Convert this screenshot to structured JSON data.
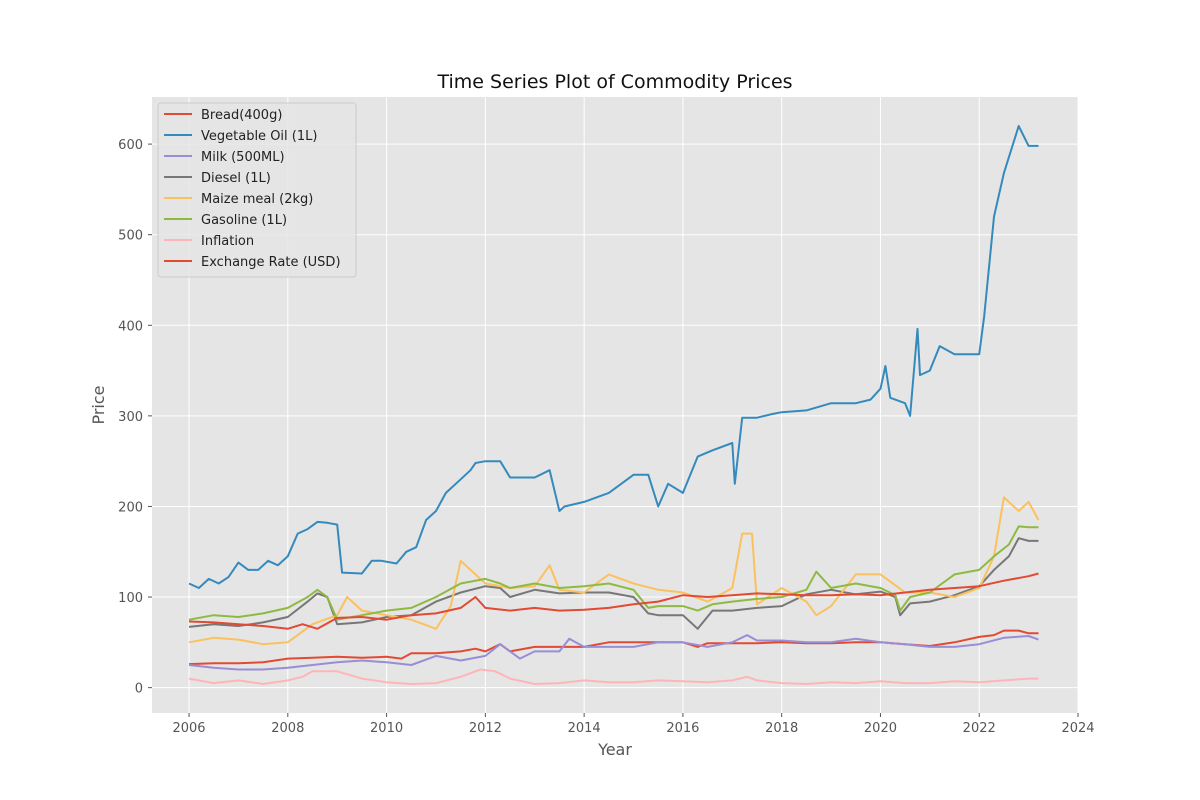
{
  "chart_data": {
    "type": "line",
    "title": "Time Series Plot of Commodity Prices",
    "xlabel": "Year",
    "ylabel": "Price",
    "xlim": [
      2005.25,
      2024.0
    ],
    "ylim": [
      -28,
      652
    ],
    "xticks": [
      2006,
      2008,
      2010,
      2012,
      2014,
      2016,
      2018,
      2020,
      2022,
      2024
    ],
    "yticks": [
      0,
      100,
      200,
      300,
      400,
      500,
      600
    ],
    "grid": true,
    "legend_position": "top-left",
    "series": [
      {
        "name": "Bread(400g)",
        "color": "#e24a33",
        "x": [
          2006.0,
          2006.5,
          2007.0,
          2007.5,
          2008.0,
          2008.5,
          2009.0,
          2009.5,
          2010.0,
          2010.3,
          2010.5,
          2011.0,
          2011.5,
          2011.8,
          2012.0,
          2012.3,
          2012.5,
          2013.0,
          2013.5,
          2014.0,
          2014.5,
          2015.0,
          2015.5,
          2016.0,
          2016.3,
          2016.5,
          2017.0,
          2017.5,
          2018.0,
          2018.5,
          2019.0,
          2019.5,
          2020.0,
          2020.5,
          2021.0,
          2021.5,
          2022.0,
          2022.3,
          2022.5,
          2022.8,
          2023.0,
          2023.2
        ],
        "y": [
          26,
          27,
          27,
          28,
          32,
          33,
          34,
          33,
          34,
          32,
          38,
          38,
          40,
          43,
          40,
          48,
          40,
          45,
          45,
          45,
          50,
          50,
          50,
          50,
          45,
          49,
          49,
          49,
          50,
          49,
          49,
          50,
          50,
          48,
          46,
          50,
          56,
          58,
          63,
          63,
          60,
          60
        ]
      },
      {
        "name": "Vegetable Oil (1L)",
        "color": "#348abd",
        "x": [
          2006.0,
          2006.2,
          2006.4,
          2006.6,
          2006.8,
          2007.0,
          2007.2,
          2007.4,
          2007.6,
          2007.8,
          2008.0,
          2008.2,
          2008.4,
          2008.6,
          2008.8,
          2009.0,
          2009.1,
          2009.5,
          2009.7,
          2009.9,
          2010.2,
          2010.4,
          2010.6,
          2010.8,
          2011.0,
          2011.2,
          2011.5,
          2011.7,
          2011.8,
          2012.0,
          2012.3,
          2012.5,
          2013.0,
          2013.3,
          2013.5,
          2013.6,
          2014.0,
          2014.5,
          2015.0,
          2015.3,
          2015.5,
          2015.7,
          2016.0,
          2016.3,
          2016.6,
          2017.0,
          2017.05,
          2017.2,
          2017.5,
          2017.8,
          2018.0,
          2018.5,
          2019.0,
          2019.5,
          2019.8,
          2020.0,
          2020.1,
          2020.2,
          2020.5,
          2020.6,
          2020.75,
          2020.8,
          2021.0,
          2021.2,
          2021.5,
          2022.0,
          2022.1,
          2022.3,
          2022.5,
          2022.8,
          2023.0,
          2023.2
        ],
        "y": [
          115,
          110,
          120,
          115,
          122,
          138,
          130,
          130,
          140,
          135,
          145,
          170,
          175,
          183,
          182,
          180,
          127,
          126,
          140,
          140,
          137,
          150,
          155,
          185,
          195,
          215,
          230,
          240,
          248,
          250,
          250,
          232,
          232,
          240,
          195,
          200,
          205,
          215,
          235,
          235,
          200,
          225,
          215,
          255,
          262,
          270,
          225,
          298,
          298,
          302,
          304,
          306,
          314,
          314,
          318,
          330,
          355,
          320,
          314,
          300,
          396,
          345,
          350,
          377,
          368,
          368,
          410,
          520,
          568,
          620,
          598,
          598
        ]
      },
      {
        "name": "Milk (500ML)",
        "color": "#988ed5",
        "x": [
          2006.0,
          2006.5,
          2007.0,
          2007.5,
          2008.0,
          2008.5,
          2009.0,
          2009.5,
          2010.0,
          2010.5,
          2011.0,
          2011.5,
          2012.0,
          2012.3,
          2012.7,
          2013.0,
          2013.5,
          2013.7,
          2014.0,
          2014.5,
          2015.0,
          2015.5,
          2016.0,
          2016.5,
          2017.0,
          2017.3,
          2017.5,
          2018.0,
          2018.5,
          2019.0,
          2019.5,
          2020.0,
          2020.5,
          2021.0,
          2021.5,
          2022.0,
          2022.5,
          2023.0,
          2023.2
        ],
        "y": [
          25,
          22,
          20,
          20,
          22,
          25,
          28,
          30,
          28,
          25,
          35,
          30,
          35,
          48,
          32,
          40,
          40,
          54,
          45,
          45,
          45,
          50,
          50,
          45,
          50,
          58,
          52,
          52,
          50,
          50,
          54,
          50,
          48,
          45,
          45,
          48,
          55,
          57,
          53
        ]
      },
      {
        "name": "Diesel (1L)",
        "color": "#777777",
        "x": [
          2006.0,
          2006.5,
          2007.0,
          2007.5,
          2008.0,
          2008.4,
          2008.6,
          2008.8,
          2009.0,
          2009.5,
          2010.0,
          2010.5,
          2011.0,
          2011.5,
          2012.0,
          2012.3,
          2012.5,
          2013.0,
          2013.5,
          2014.0,
          2014.5,
          2015.0,
          2015.3,
          2015.5,
          2016.0,
          2016.3,
          2016.6,
          2017.0,
          2017.5,
          2018.0,
          2018.5,
          2019.0,
          2019.5,
          2020.0,
          2020.3,
          2020.4,
          2020.6,
          2021.0,
          2021.5,
          2022.0,
          2022.3,
          2022.6,
          2022.8,
          2023.0,
          2023.2
        ],
        "y": [
          67,
          70,
          68,
          72,
          78,
          95,
          104,
          100,
          70,
          72,
          78,
          80,
          95,
          105,
          112,
          110,
          100,
          108,
          104,
          105,
          105,
          100,
          82,
          80,
          80,
          65,
          85,
          85,
          88,
          90,
          103,
          108,
          103,
          106,
          100,
          80,
          93,
          95,
          102,
          112,
          130,
          145,
          165,
          162,
          162
        ]
      },
      {
        "name": "Maize meal (2kg)",
        "color": "#fbc15e",
        "x": [
          2006.0,
          2006.5,
          2007.0,
          2007.5,
          2008.0,
          2008.5,
          2009.0,
          2009.2,
          2009.5,
          2010.0,
          2010.5,
          2011.0,
          2011.3,
          2011.5,
          2012.0,
          2012.5,
          2013.0,
          2013.3,
          2013.5,
          2014.0,
          2014.5,
          2015.0,
          2015.5,
          2016.0,
          2016.5,
          2017.0,
          2017.2,
          2017.4,
          2017.5,
          2018.0,
          2018.5,
          2018.7,
          2019.0,
          2019.5,
          2020.0,
          2020.5,
          2021.0,
          2021.5,
          2022.0,
          2022.3,
          2022.5,
          2022.8,
          2023.0,
          2023.2
        ],
        "y": [
          50,
          55,
          53,
          48,
          50,
          70,
          80,
          100,
          85,
          80,
          75,
          65,
          90,
          140,
          115,
          110,
          112,
          135,
          108,
          105,
          125,
          115,
          108,
          105,
          95,
          110,
          170,
          170,
          92,
          110,
          95,
          80,
          90,
          125,
          125,
          105,
          105,
          100,
          110,
          145,
          210,
          195,
          205,
          185
        ]
      },
      {
        "name": "Gasoline (1L)",
        "color": "#8eba42",
        "x": [
          2006.0,
          2006.5,
          2007.0,
          2007.5,
          2008.0,
          2008.4,
          2008.6,
          2008.8,
          2009.0,
          2009.5,
          2010.0,
          2010.5,
          2011.0,
          2011.5,
          2012.0,
          2012.3,
          2012.5,
          2013.0,
          2013.5,
          2014.0,
          2014.5,
          2015.0,
          2015.3,
          2015.5,
          2016.0,
          2016.3,
          2016.6,
          2017.0,
          2017.5,
          2018.0,
          2018.5,
          2018.7,
          2019.0,
          2019.5,
          2020.0,
          2020.3,
          2020.4,
          2020.6,
          2021.0,
          2021.5,
          2022.0,
          2022.3,
          2022.6,
          2022.8,
          2023.0,
          2023.2
        ],
        "y": [
          75,
          80,
          78,
          82,
          88,
          100,
          108,
          100,
          75,
          80,
          85,
          88,
          100,
          115,
          120,
          115,
          110,
          115,
          110,
          112,
          115,
          108,
          88,
          90,
          90,
          85,
          92,
          95,
          98,
          100,
          108,
          128,
          110,
          115,
          110,
          102,
          85,
          100,
          105,
          125,
          130,
          145,
          158,
          178,
          177,
          177
        ]
      },
      {
        "name": "Inflation",
        "color": "#ffb5b8",
        "x": [
          2006.0,
          2006.5,
          2007.0,
          2007.5,
          2008.0,
          2008.3,
          2008.5,
          2009.0,
          2009.5,
          2010.0,
          2010.5,
          2011.0,
          2011.5,
          2011.9,
          2012.2,
          2012.5,
          2013.0,
          2013.5,
          2014.0,
          2014.5,
          2015.0,
          2015.5,
          2016.0,
          2016.5,
          2017.0,
          2017.3,
          2017.5,
          2018.0,
          2018.5,
          2019.0,
          2019.5,
          2020.0,
          2020.5,
          2021.0,
          2021.5,
          2022.0,
          2022.5,
          2023.0,
          2023.2
        ],
        "y": [
          10,
          5,
          8,
          4,
          8,
          12,
          18,
          18,
          10,
          6,
          4,
          5,
          12,
          20,
          18,
          10,
          4,
          5,
          8,
          6,
          6,
          8,
          7,
          6,
          8,
          12,
          8,
          5,
          4,
          6,
          5,
          7,
          5,
          5,
          7,
          6,
          8,
          10,
          10
        ]
      },
      {
        "name": "Exchange Rate (USD)",
        "color": "#e24a33",
        "x": [
          2006.0,
          2006.5,
          2007.0,
          2007.5,
          2008.0,
          2008.3,
          2008.6,
          2009.0,
          2009.5,
          2010.0,
          2010.5,
          2011.0,
          2011.5,
          2011.8,
          2012.0,
          2012.5,
          2013.0,
          2013.5,
          2014.0,
          2014.5,
          2015.0,
          2015.5,
          2016.0,
          2016.5,
          2017.0,
          2017.5,
          2018.0,
          2018.5,
          2019.0,
          2019.5,
          2020.0,
          2020.5,
          2021.0,
          2021.5,
          2022.0,
          2022.5,
          2023.0,
          2023.2
        ],
        "y": [
          73,
          72,
          70,
          68,
          65,
          70,
          65,
          77,
          78,
          75,
          80,
          82,
          88,
          100,
          88,
          85,
          88,
          85,
          86,
          88,
          92,
          95,
          102,
          100,
          102,
          104,
          103,
          102,
          102,
          103,
          102,
          105,
          108,
          110,
          112,
          118,
          123,
          126
        ]
      }
    ]
  }
}
